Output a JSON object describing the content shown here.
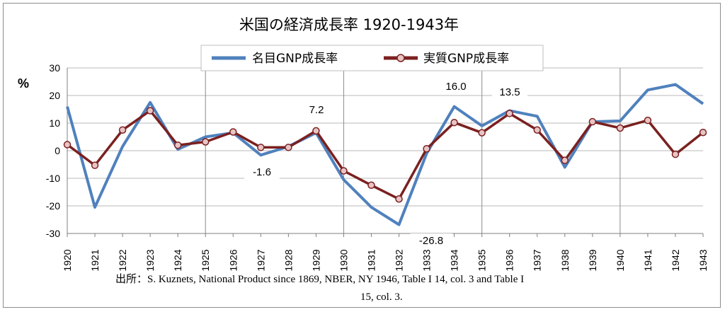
{
  "chart_data": {
    "type": "line",
    "title": "米国の経済成長率 1920-1943年",
    "ylabel": "%",
    "xlabel": "",
    "ylim": [
      -30,
      30
    ],
    "yticks": [
      30,
      20,
      10,
      0,
      -10,
      -20,
      -30
    ],
    "grid": true,
    "legend_position": "top-center",
    "x": [
      "1920",
      "1921",
      "1922",
      "1923",
      "1924",
      "1925",
      "1926",
      "1927",
      "1928",
      "1929",
      "1930",
      "1931",
      "1932",
      "1933",
      "1934",
      "1935",
      "1936",
      "1937",
      "1938",
      "1939",
      "1940",
      "1941",
      "1942",
      "1943"
    ],
    "series": [
      {
        "name": "名目GNP成長率",
        "color": "#4f81bd",
        "marker": "none",
        "values": [
          16.0,
          -20.5,
          1.5,
          17.5,
          0.5,
          5.0,
          6.5,
          -1.6,
          1.5,
          6.5,
          -10.5,
          -20.5,
          -26.8,
          -1.0,
          16.0,
          9.0,
          14.5,
          12.5,
          -6.0,
          10.5,
          10.8,
          22.0,
          24.0,
          17.0
        ]
      },
      {
        "name": "実質GNP成長率",
        "color": "#7b2020",
        "marker": "circle",
        "values": [
          2.2,
          -5.3,
          7.5,
          14.5,
          2.0,
          3.2,
          6.8,
          1.2,
          1.2,
          7.2,
          -7.3,
          -12.5,
          -17.5,
          0.7,
          10.2,
          6.5,
          13.5,
          7.5,
          -3.5,
          10.5,
          8.2,
          11.0,
          -1.3,
          6.6
        ]
      }
    ],
    "annotations": [
      "16.0",
      "13.5",
      "7.2",
      "-1.6",
      "-26.8"
    ]
  },
  "source": {
    "line1": "出所：S. Kuznets, National Product since 1869, NBER, NY 1946, Table I 14, col. 3 and Table I",
    "line2": "15, col. 3."
  }
}
